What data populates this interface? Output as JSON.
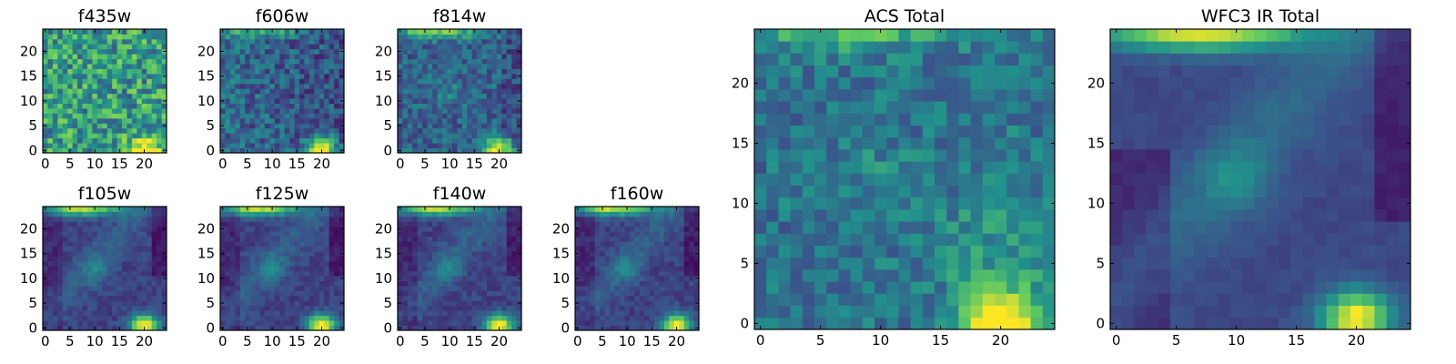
{
  "figure": {
    "colormap": "viridis",
    "colormap_stops": [
      "#440154",
      "#3b528b",
      "#21918c",
      "#5ec962",
      "#fde725"
    ]
  },
  "chart_data": [
    {
      "type": "heatmap",
      "title": "f435w",
      "grid_size": 25,
      "xlim": [
        -0.5,
        24.5
      ],
      "ylim": [
        -0.5,
        24.5
      ],
      "xticks": [
        0,
        5,
        10,
        15,
        20
      ],
      "yticks": [
        0,
        5,
        10,
        15,
        20
      ],
      "pattern": "f435w"
    },
    {
      "type": "heatmap",
      "title": "f606w",
      "grid_size": 25,
      "xlim": [
        -0.5,
        24.5
      ],
      "ylim": [
        -0.5,
        24.5
      ],
      "xticks": [
        0,
        5,
        10,
        15,
        20
      ],
      "yticks": [
        0,
        5,
        10,
        15,
        20
      ],
      "pattern": "f606w"
    },
    {
      "type": "heatmap",
      "title": "f814w",
      "grid_size": 25,
      "xlim": [
        -0.5,
        24.5
      ],
      "ylim": [
        -0.5,
        24.5
      ],
      "xticks": [
        0,
        5,
        10,
        15,
        20
      ],
      "yticks": [
        0,
        5,
        10,
        15,
        20
      ],
      "pattern": "f814w"
    },
    {
      "type": "heatmap",
      "title": "f105w",
      "grid_size": 25,
      "xlim": [
        -0.5,
        24.5
      ],
      "ylim": [
        -0.5,
        24.5
      ],
      "xticks": [
        0,
        5,
        10,
        15,
        20
      ],
      "yticks": [
        0,
        5,
        10,
        15,
        20
      ],
      "pattern": "ir"
    },
    {
      "type": "heatmap",
      "title": "f125w",
      "grid_size": 25,
      "xlim": [
        -0.5,
        24.5
      ],
      "ylim": [
        -0.5,
        24.5
      ],
      "xticks": [
        0,
        5,
        10,
        15,
        20
      ],
      "yticks": [
        0,
        5,
        10,
        15,
        20
      ],
      "pattern": "ir"
    },
    {
      "type": "heatmap",
      "title": "f140w",
      "grid_size": 25,
      "xlim": [
        -0.5,
        24.5
      ],
      "ylim": [
        -0.5,
        24.5
      ],
      "xticks": [
        0,
        5,
        10,
        15,
        20
      ],
      "yticks": [
        0,
        5,
        10,
        15,
        20
      ],
      "pattern": "ir"
    },
    {
      "type": "heatmap",
      "title": "f160w",
      "grid_size": 25,
      "xlim": [
        -0.5,
        24.5
      ],
      "ylim": [
        -0.5,
        24.5
      ],
      "xticks": [
        0,
        5,
        10,
        15,
        20
      ],
      "yticks": [
        0,
        5,
        10,
        15,
        20
      ],
      "pattern": "ir"
    },
    {
      "type": "heatmap",
      "title": "ACS Total",
      "grid_size": 25,
      "xlim": [
        -0.5,
        24.5
      ],
      "ylim": [
        -0.5,
        24.5
      ],
      "xticks": [
        0,
        5,
        10,
        15,
        20
      ],
      "yticks": [
        0,
        5,
        10,
        15,
        20
      ],
      "pattern": "acs"
    },
    {
      "type": "heatmap",
      "title": "WFC3 IR Total",
      "grid_size": 25,
      "xlim": [
        -0.5,
        24.5
      ],
      "ylim": [
        -0.5,
        24.5
      ],
      "xticks": [
        0,
        5,
        10,
        15,
        20
      ],
      "yticks": [
        0,
        5,
        10,
        15,
        20
      ],
      "pattern": "irtotal"
    }
  ]
}
